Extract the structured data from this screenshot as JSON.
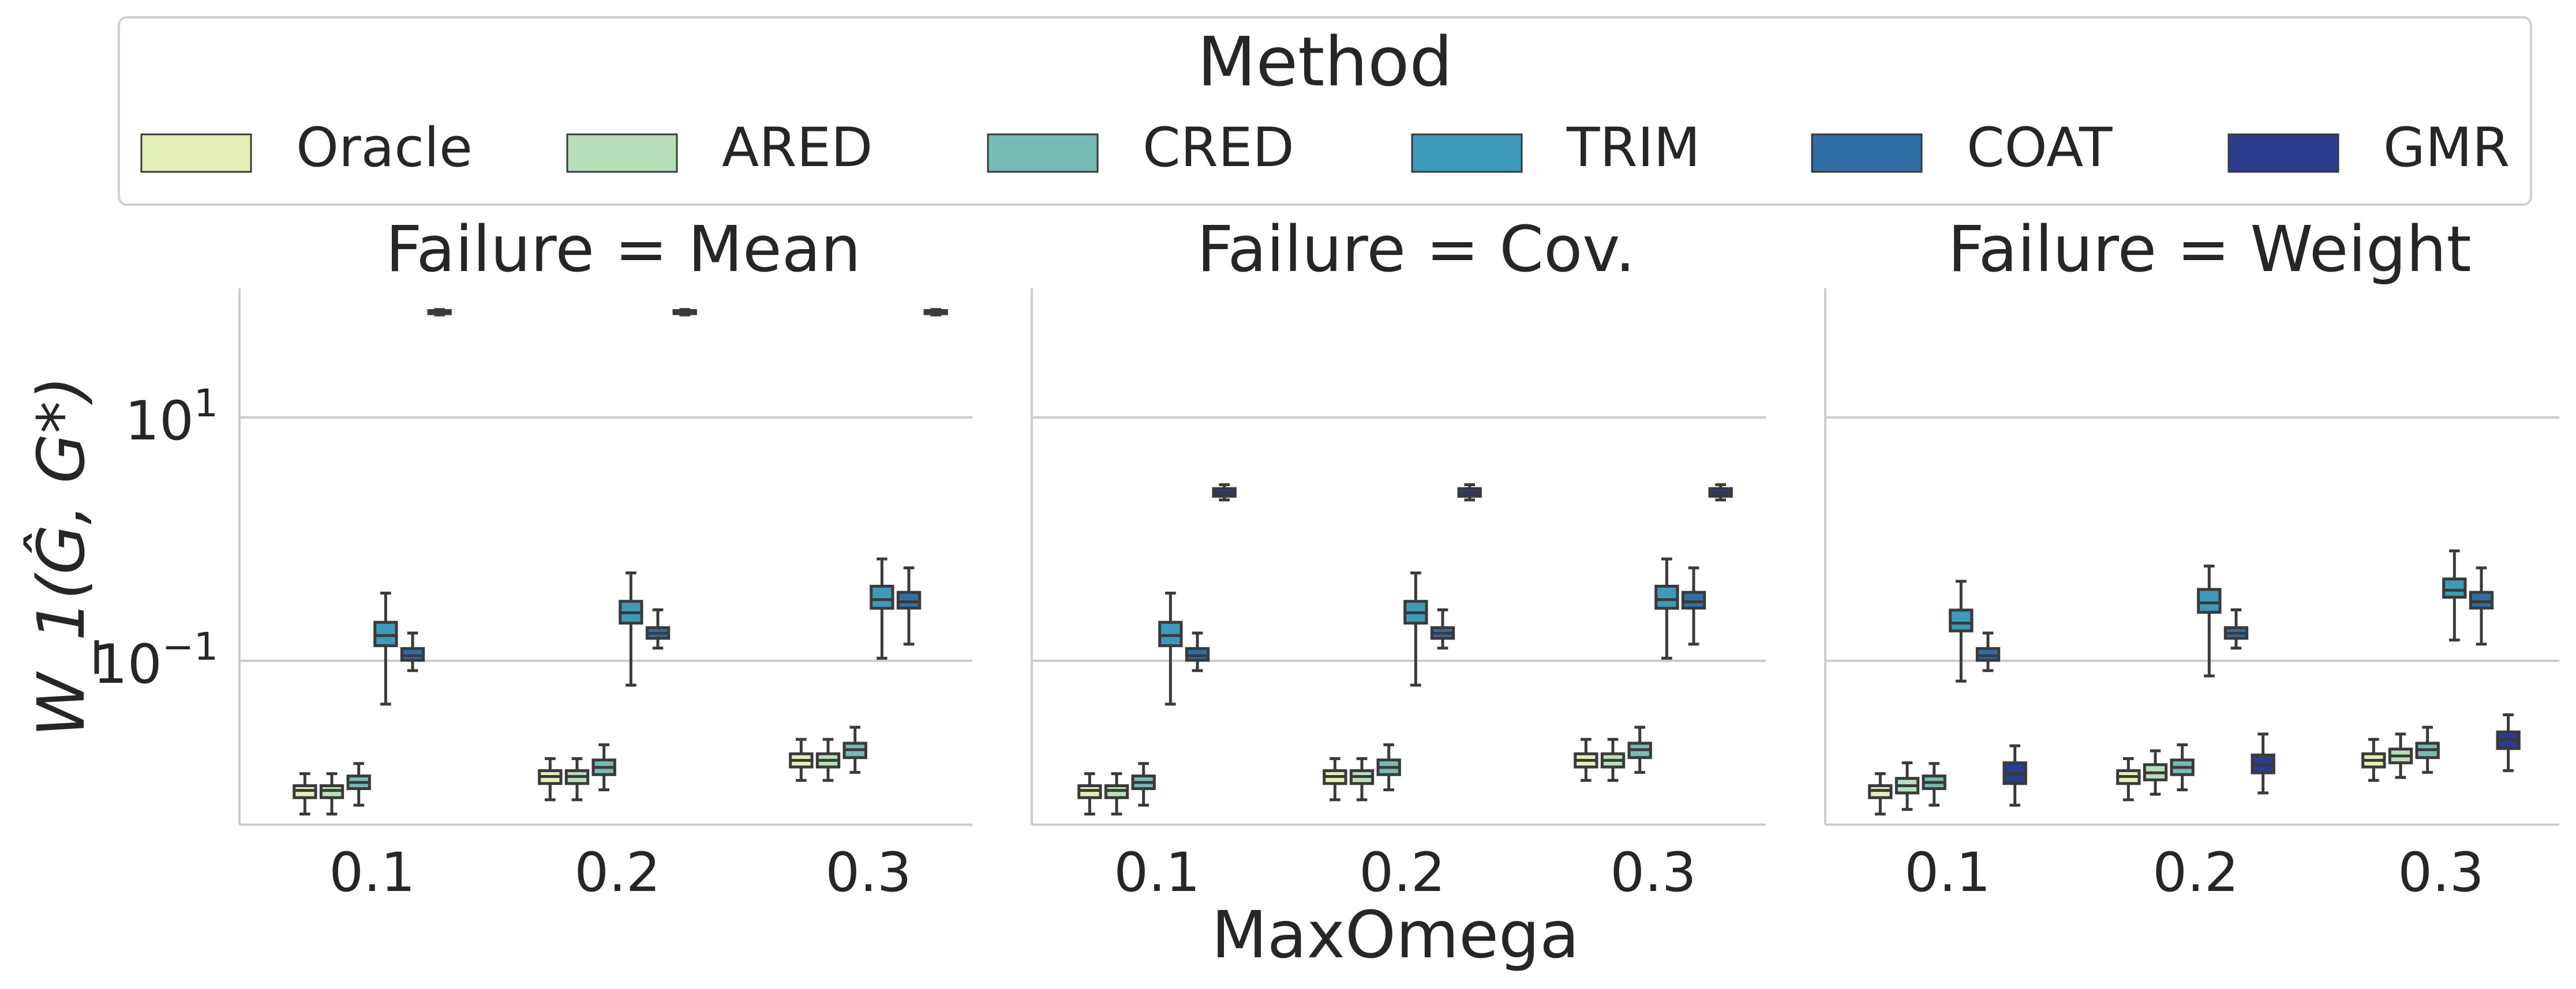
{
  "chart_data": {
    "type": "boxplot",
    "legend": {
      "title": "Method",
      "position": "top"
    },
    "methods": [
      {
        "name": "Oracle",
        "color": "#e5efb8"
      },
      {
        "name": "ARED",
        "color": "#b7dfb9"
      },
      {
        "name": "CRED",
        "color": "#76bcb5"
      },
      {
        "name": "TRIM",
        "color": "#3d9ab9"
      },
      {
        "name": "COAT",
        "color": "#316ea5"
      },
      {
        "name": "GMR",
        "color": "#2b3d8f"
      }
    ],
    "xlabel": "MaxOmega",
    "ylabel_latex": "W_1(Ĝ, G*)",
    "yscale": "log",
    "ylim": [
      0.0045,
      115
    ],
    "yticks": [
      {
        "value": 10,
        "base": "10",
        "exp": "1"
      },
      {
        "value": 0.1,
        "base": "10",
        "exp": "−1"
      }
    ],
    "categories": [
      "0.1",
      "0.2",
      "0.3"
    ],
    "panels": [
      {
        "title": "Failure = Mean",
        "boxes": {
          "Oracle": [
            [
              0.0055,
              0.0075,
              0.0086,
              0.0094,
              0.0118
            ],
            [
              0.0072,
              0.0098,
              0.0112,
              0.0125,
              0.0157
            ],
            [
              0.0104,
              0.0134,
              0.0152,
              0.0172,
              0.0226
            ]
          ],
          "ARED": [
            [
              0.0055,
              0.0075,
              0.0086,
              0.0094,
              0.0118
            ],
            [
              0.0072,
              0.0098,
              0.0112,
              0.0125,
              0.0157
            ],
            [
              0.0104,
              0.0134,
              0.0152,
              0.0172,
              0.0226
            ]
          ],
          "CRED": [
            [
              0.0065,
              0.0089,
              0.01,
              0.0113,
              0.0143
            ],
            [
              0.0087,
              0.0116,
              0.0133,
              0.0153,
              0.0204
            ],
            [
              0.0121,
              0.016,
              0.0186,
              0.021,
              0.0284
            ]
          ],
          "TRIM": [
            [
              0.044,
              0.133,
              0.161,
              0.207,
              0.36
            ],
            [
              0.063,
              0.204,
              0.248,
              0.308,
              0.527
            ],
            [
              0.105,
              0.27,
              0.318,
              0.41,
              0.687
            ]
          ],
          "COAT": [
            [
              0.083,
              0.101,
              0.11,
              0.126,
              0.169
            ],
            [
              0.127,
              0.153,
              0.168,
              0.187,
              0.262
            ],
            [
              0.137,
              0.271,
              0.305,
              0.365,
              0.58
            ]
          ],
          "GMR": [
            [
              69.5,
              71.2,
              73.0,
              75.5,
              77.0
            ],
            [
              69.5,
              71.2,
              73.0,
              75.5,
              77.0
            ],
            [
              69.5,
              71.2,
              73.0,
              75.5,
              77.0
            ]
          ]
        }
      },
      {
        "title": "Failure = Cov.",
        "boxes": {
          "Oracle": [
            [
              0.0055,
              0.0075,
              0.0086,
              0.0094,
              0.0118
            ],
            [
              0.0072,
              0.0098,
              0.0112,
              0.0125,
              0.0157
            ],
            [
              0.0104,
              0.0134,
              0.0152,
              0.0172,
              0.0226
            ]
          ],
          "ARED": [
            [
              0.0055,
              0.0075,
              0.0086,
              0.0094,
              0.0118
            ],
            [
              0.0072,
              0.0098,
              0.0112,
              0.0125,
              0.0157
            ],
            [
              0.0104,
              0.0134,
              0.0152,
              0.0172,
              0.0226
            ]
          ],
          "CRED": [
            [
              0.0065,
              0.0089,
              0.01,
              0.0113,
              0.0143
            ],
            [
              0.0087,
              0.0116,
              0.0133,
              0.0153,
              0.0204
            ],
            [
              0.0121,
              0.016,
              0.0186,
              0.021,
              0.0284
            ]
          ],
          "TRIM": [
            [
              0.044,
              0.133,
              0.161,
              0.207,
              0.36
            ],
            [
              0.063,
              0.204,
              0.248,
              0.308,
              0.527
            ],
            [
              0.105,
              0.27,
              0.318,
              0.41,
              0.687
            ]
          ],
          "COAT": [
            [
              0.083,
              0.101,
              0.11,
              0.126,
              0.169
            ],
            [
              0.127,
              0.153,
              0.168,
              0.187,
              0.262
            ],
            [
              0.137,
              0.271,
              0.305,
              0.365,
              0.58
            ]
          ],
          "GMR": [
            [
              2.1,
              2.25,
              2.4,
              2.6,
              2.8
            ],
            [
              2.1,
              2.25,
              2.4,
              2.6,
              2.8
            ],
            [
              2.1,
              2.25,
              2.4,
              2.6,
              2.8
            ]
          ]
        }
      },
      {
        "title": "Failure = Weight",
        "boxes": {
          "Oracle": [
            [
              0.0055,
              0.0075,
              0.0086,
              0.0094,
              0.0118
            ],
            [
              0.0072,
              0.0098,
              0.0112,
              0.0125,
              0.0157
            ],
            [
              0.0104,
              0.0134,
              0.0152,
              0.0172,
              0.0226
            ]
          ],
          "ARED": [
            [
              0.006,
              0.0082,
              0.0094,
              0.0108,
              0.0145
            ],
            [
              0.008,
              0.0105,
              0.012,
              0.014,
              0.0182
            ],
            [
              0.011,
              0.0145,
              0.0165,
              0.0188,
              0.025
            ]
          ],
          "CRED": [
            [
              0.0065,
              0.0089,
              0.01,
              0.0113,
              0.0143
            ],
            [
              0.0087,
              0.0116,
              0.0133,
              0.0153,
              0.0204
            ],
            [
              0.0121,
              0.016,
              0.0186,
              0.021,
              0.0284
            ]
          ],
          "TRIM": [
            [
              0.068,
              0.176,
              0.204,
              0.261,
              0.45
            ],
            [
              0.075,
              0.25,
              0.299,
              0.386,
              0.6
            ],
            [
              0.148,
              0.333,
              0.38,
              0.47,
              0.8
            ]
          ],
          "COAT": [
            [
              0.083,
              0.101,
              0.11,
              0.126,
              0.169
            ],
            [
              0.127,
              0.153,
              0.168,
              0.187,
              0.262
            ],
            [
              0.137,
              0.271,
              0.305,
              0.365,
              0.58
            ]
          ],
          "GMR": [
            [
              0.0065,
              0.0098,
              0.0118,
              0.0145,
              0.02
            ],
            [
              0.0082,
              0.012,
              0.014,
              0.0168,
              0.025
            ],
            [
              0.0125,
              0.019,
              0.0226,
              0.026,
              0.036
            ]
          ]
        }
      }
    ]
  }
}
